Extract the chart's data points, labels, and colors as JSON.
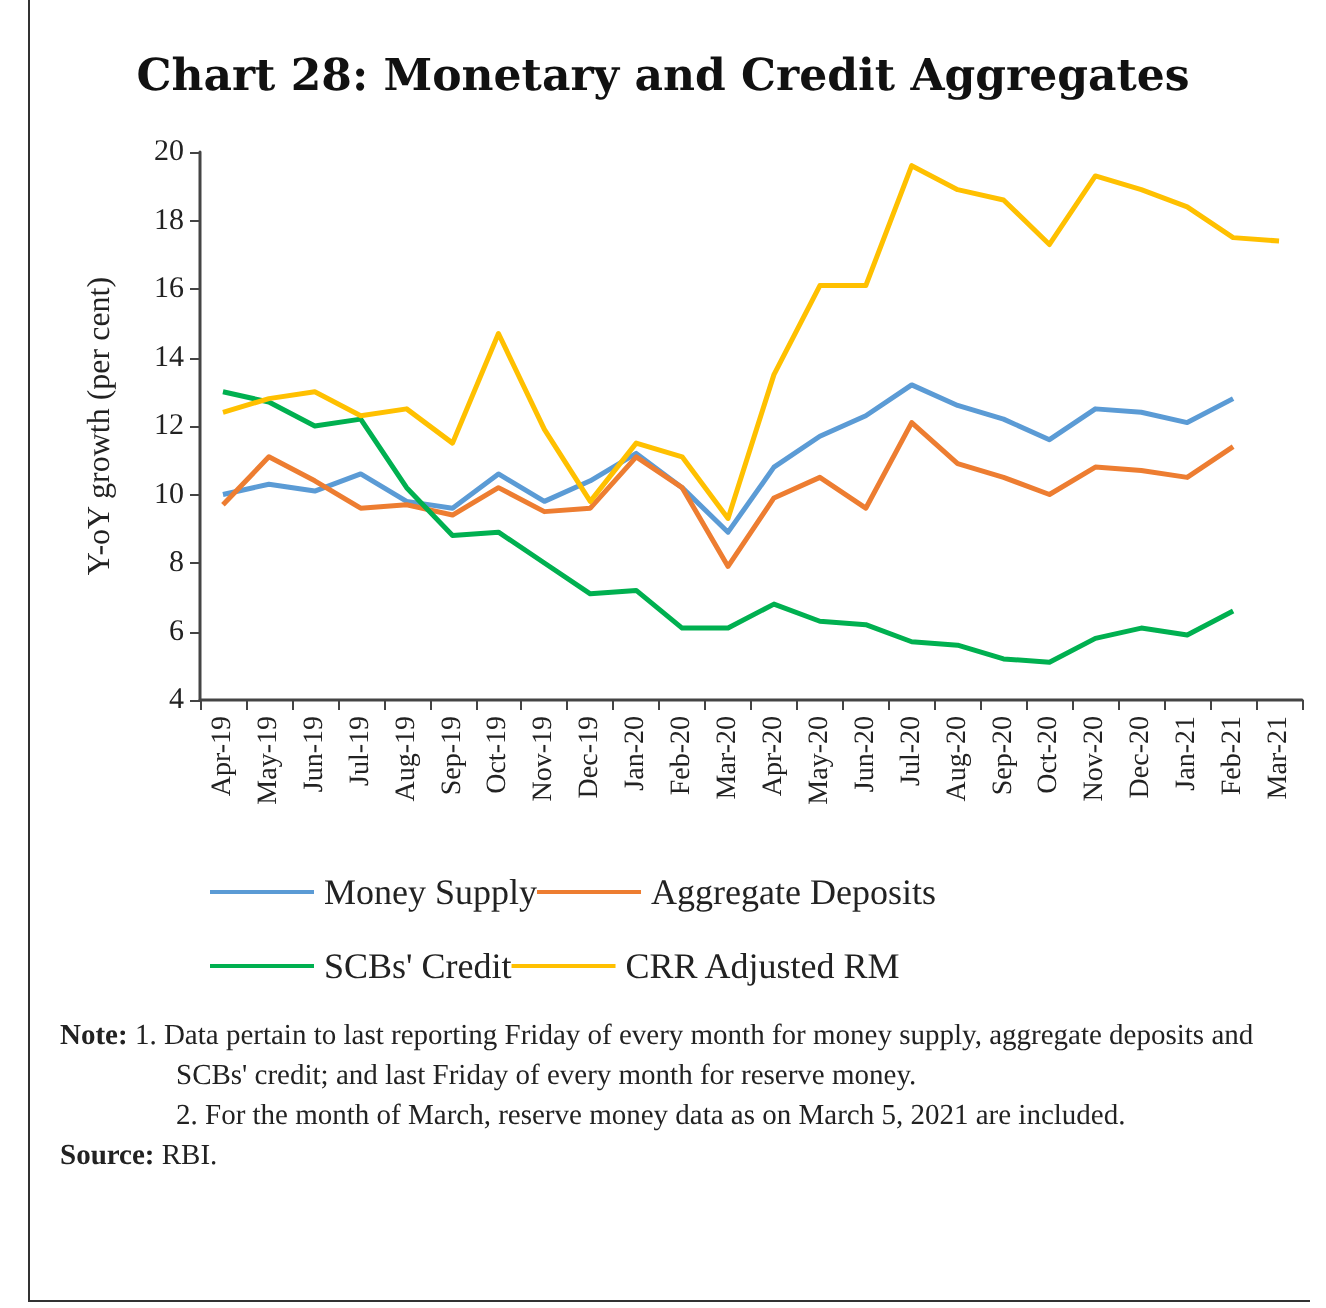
{
  "chart_data": {
    "type": "line",
    "title": "Chart 28: Monetary and Credit Aggregates",
    "ylabel": "Y-oY growth (per cent)",
    "categories": [
      "Apr-19",
      "May-19",
      "Jun-19",
      "Jul-19",
      "Aug-19",
      "Sep-19",
      "Oct-19",
      "Nov-19",
      "Dec-19",
      "Jan-20",
      "Feb-20",
      "Mar-20",
      "Apr-20",
      "May-20",
      "Jun-20",
      "Jul-20",
      "Aug-20",
      "Sep-20",
      "Oct-20",
      "Nov-20",
      "Dec-20",
      "Jan-21",
      "Feb-21",
      "Mar-21"
    ],
    "series": [
      {
        "name": "Money Supply",
        "color": "#5b9bd5",
        "values": [
          10.0,
          10.3,
          10.1,
          10.6,
          9.8,
          9.6,
          10.6,
          9.8,
          10.4,
          11.2,
          10.2,
          8.9,
          10.8,
          11.7,
          12.3,
          13.2,
          12.6,
          12.2,
          11.6,
          12.5,
          12.4,
          12.1,
          12.8,
          null
        ]
      },
      {
        "name": "Aggregate Deposits",
        "color": "#ed7d31",
        "values": [
          9.7,
          11.1,
          10.4,
          9.6,
          9.7,
          9.4,
          10.2,
          9.5,
          9.6,
          11.1,
          10.2,
          7.9,
          9.9,
          10.5,
          9.6,
          12.1,
          10.9,
          10.5,
          10.0,
          10.8,
          10.7,
          10.5,
          11.4,
          null
        ]
      },
      {
        "name": "SCBs' Credit",
        "color": "#00b050",
        "values": [
          13.0,
          12.7,
          12.0,
          12.2,
          10.2,
          8.8,
          8.9,
          8.0,
          7.1,
          7.2,
          6.1,
          6.1,
          6.8,
          6.3,
          6.2,
          5.7,
          5.6,
          5.2,
          5.1,
          5.8,
          6.1,
          5.9,
          6.6,
          null
        ]
      },
      {
        "name": "CRR Adjusted RM",
        "color": "#ffc000",
        "values": [
          12.4,
          12.8,
          13.0,
          12.3,
          12.5,
          11.5,
          14.7,
          11.9,
          9.8,
          11.5,
          11.1,
          9.3,
          13.5,
          16.1,
          16.1,
          19.6,
          18.9,
          18.6,
          17.3,
          19.3,
          18.9,
          18.4,
          17.5,
          17.4
        ]
      }
    ],
    "ylim": [
      4,
      20
    ],
    "yticks": [
      4,
      6,
      8,
      10,
      12,
      14,
      16,
      18,
      20
    ],
    "grid": false,
    "legend": "bottom",
    "marker": "none",
    "line_style": "solid",
    "annotations": [
      "Note: 1. Data pertain to last reporting Friday of every month for money supply, aggregate deposits and SCBs' credit; and last Friday of every month for reserve money.",
      "2. For the month of March, reserve money data as on March 5, 2021 are included.",
      "Source: RBI."
    ]
  }
}
